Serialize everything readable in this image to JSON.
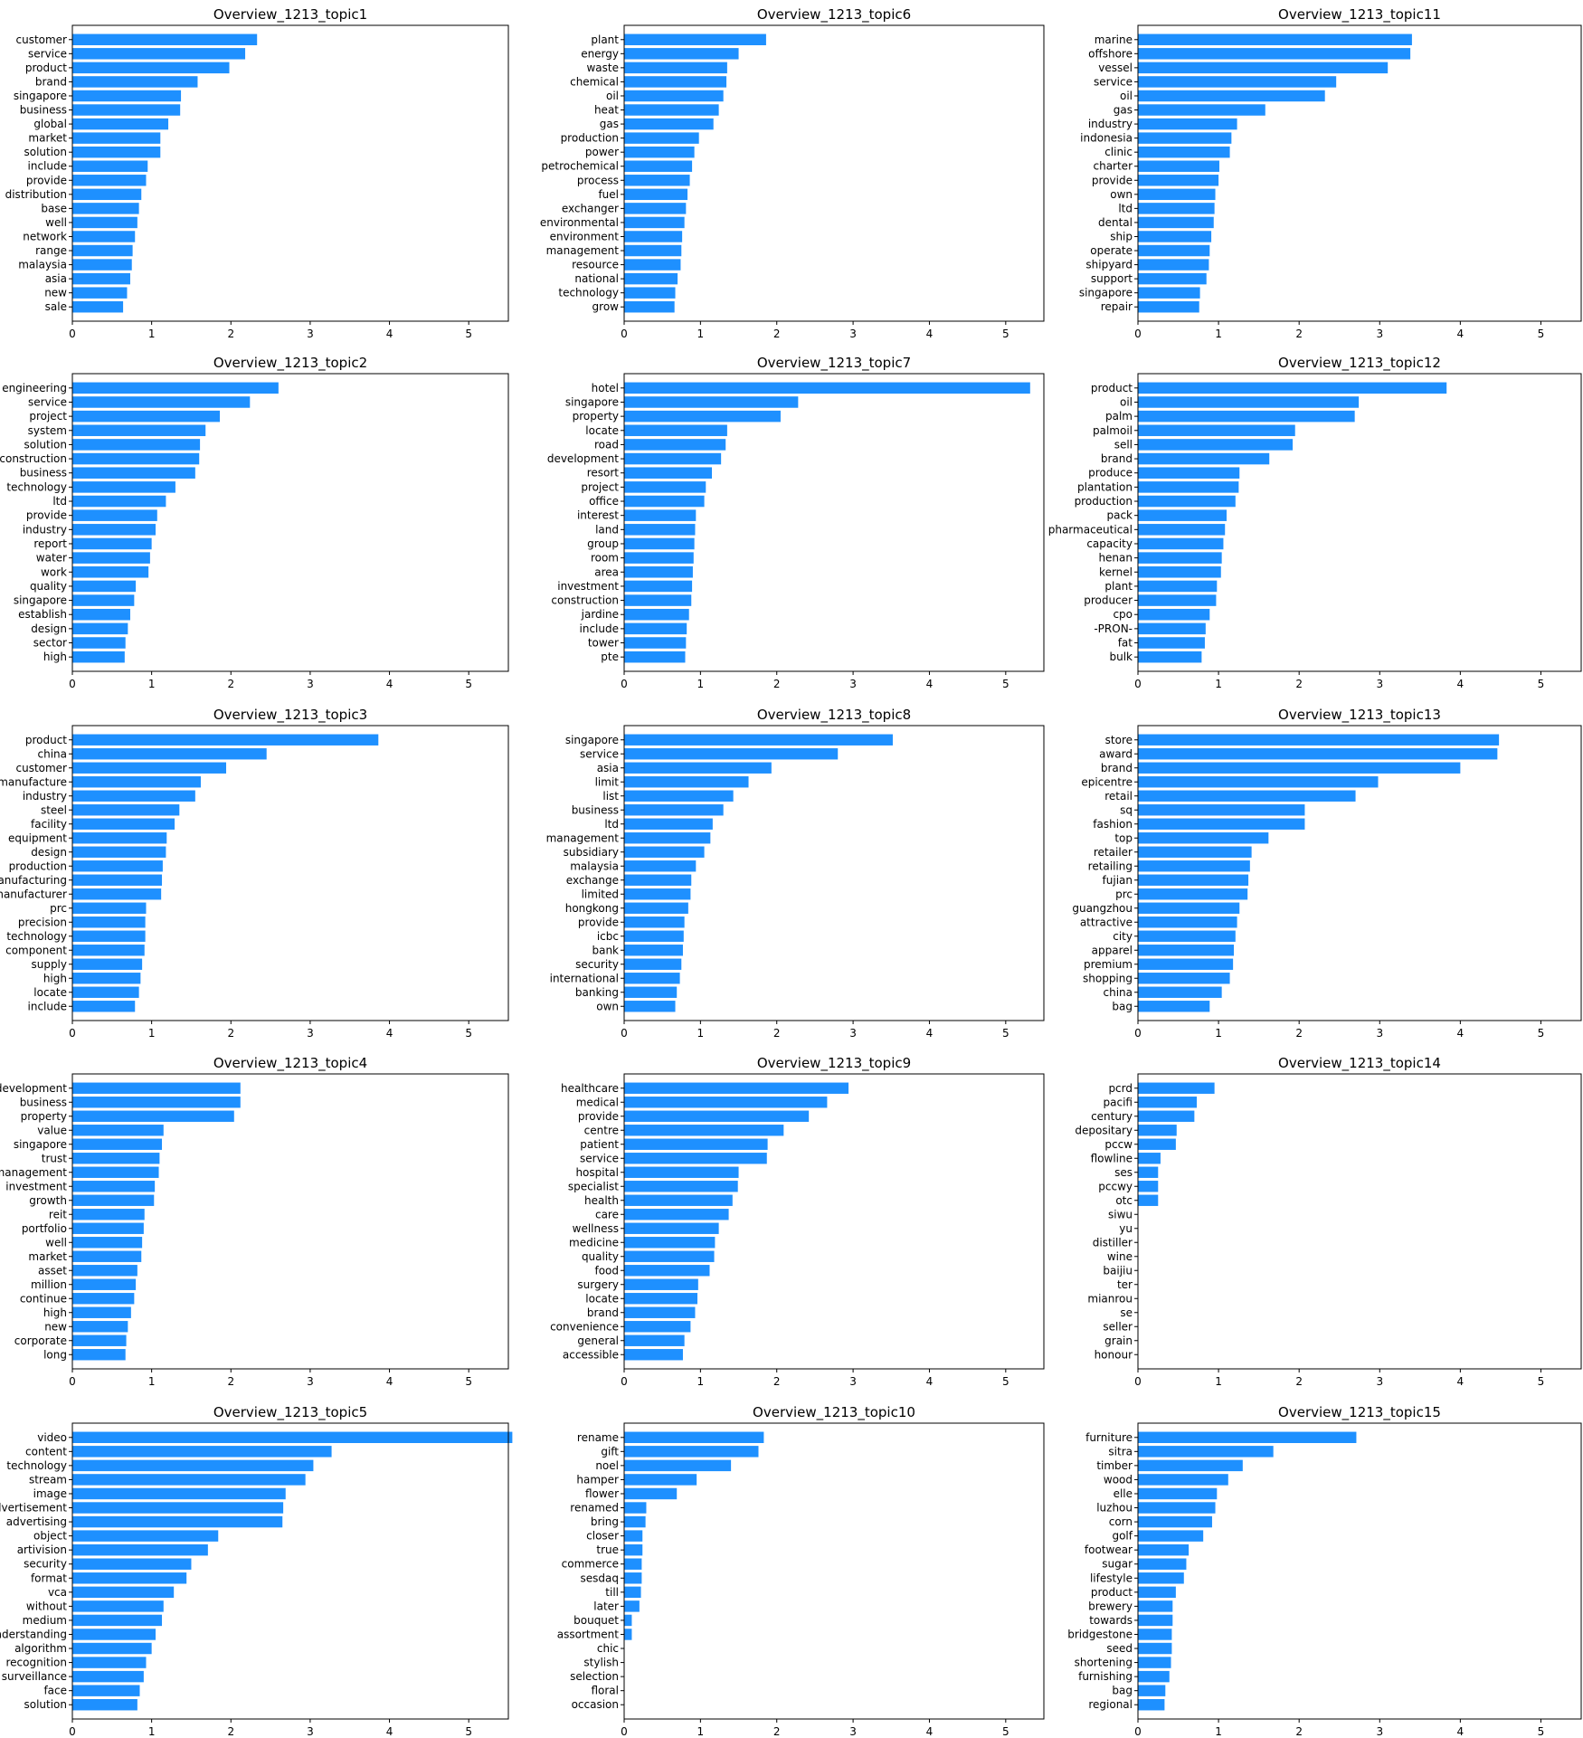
{
  "chart_data": [
    {
      "type": "bar",
      "orientation": "horizontal",
      "title": "Overview_1213_topic1",
      "xlim": [
        0,
        5.5
      ],
      "xticks": [
        0,
        1,
        2,
        3,
        4,
        5
      ],
      "bar_color": "#1E90FF",
      "categories": [
        "customer",
        "service",
        "product",
        "brand",
        "singapore",
        "business",
        "global",
        "market",
        "solution",
        "include",
        "provide",
        "distribution",
        "base",
        "well",
        "network",
        "range",
        "malaysia",
        "asia",
        "new",
        "sale"
      ],
      "values": [
        2.33,
        2.18,
        1.98,
        1.58,
        1.37,
        1.36,
        1.21,
        1.11,
        1.11,
        0.95,
        0.93,
        0.87,
        0.84,
        0.82,
        0.79,
        0.76,
        0.75,
        0.73,
        0.69,
        0.64
      ]
    },
    {
      "type": "bar",
      "orientation": "horizontal",
      "title": "Overview_1213_topic6",
      "xlim": [
        0,
        5.5
      ],
      "xticks": [
        0,
        1,
        2,
        3,
        4,
        5
      ],
      "bar_color": "#1E90FF",
      "categories": [
        "plant",
        "energy",
        "waste",
        "chemical",
        "oil",
        "heat",
        "gas",
        "production",
        "power",
        "petrochemical",
        "process",
        "fuel",
        "exchanger",
        "environmental",
        "environment",
        "management",
        "resource",
        "national",
        "technology",
        "grow"
      ],
      "values": [
        1.86,
        1.5,
        1.35,
        1.34,
        1.3,
        1.24,
        1.17,
        0.98,
        0.92,
        0.89,
        0.86,
        0.83,
        0.81,
        0.79,
        0.76,
        0.75,
        0.74,
        0.7,
        0.67,
        0.66
      ]
    },
    {
      "type": "bar",
      "orientation": "horizontal",
      "title": "Overview_1213_topic11",
      "xlim": [
        0,
        5.5
      ],
      "xticks": [
        0,
        1,
        2,
        3,
        4,
        5
      ],
      "bar_color": "#1E90FF",
      "categories": [
        "marine",
        "offshore",
        "vessel",
        "service",
        "oil",
        "gas",
        "industry",
        "indonesia",
        "clinic",
        "charter",
        "provide",
        "own",
        "ltd",
        "dental",
        "ship",
        "operate",
        "shipyard",
        "support",
        "singapore",
        "repair"
      ],
      "values": [
        3.4,
        3.38,
        3.1,
        2.46,
        2.32,
        1.58,
        1.23,
        1.16,
        1.14,
        1.01,
        1.0,
        0.96,
        0.95,
        0.94,
        0.91,
        0.89,
        0.88,
        0.85,
        0.77,
        0.76
      ]
    },
    {
      "type": "bar",
      "orientation": "horizontal",
      "title": "Overview_1213_topic2",
      "xlim": [
        0,
        5.5
      ],
      "xticks": [
        0,
        1,
        2,
        3,
        4,
        5
      ],
      "bar_color": "#1E90FF",
      "categories": [
        "engineering",
        "service",
        "project",
        "system",
        "solution",
        "construction",
        "business",
        "technology",
        "ltd",
        "provide",
        "industry",
        "report",
        "water",
        "work",
        "quality",
        "singapore",
        "establish",
        "design",
        "sector",
        "high"
      ],
      "values": [
        2.6,
        2.24,
        1.86,
        1.68,
        1.61,
        1.6,
        1.55,
        1.3,
        1.18,
        1.07,
        1.05,
        1.0,
        0.98,
        0.96,
        0.8,
        0.78,
        0.73,
        0.7,
        0.67,
        0.66
      ]
    },
    {
      "type": "bar",
      "orientation": "horizontal",
      "title": "Overview_1213_topic7",
      "xlim": [
        0,
        5.5
      ],
      "xticks": [
        0,
        1,
        2,
        3,
        4,
        5
      ],
      "bar_color": "#1E90FF",
      "categories": [
        "hotel",
        "singapore",
        "property",
        "locate",
        "road",
        "development",
        "resort",
        "project",
        "office",
        "interest",
        "land",
        "group",
        "room",
        "area",
        "investment",
        "construction",
        "jardine",
        "include",
        "tower",
        "pte"
      ],
      "values": [
        5.32,
        2.28,
        2.05,
        1.35,
        1.33,
        1.27,
        1.15,
        1.07,
        1.05,
        0.94,
        0.93,
        0.92,
        0.91,
        0.9,
        0.89,
        0.88,
        0.85,
        0.82,
        0.81,
        0.8
      ]
    },
    {
      "type": "bar",
      "orientation": "horizontal",
      "title": "Overview_1213_topic12",
      "xlim": [
        0,
        5.5
      ],
      "xticks": [
        0,
        1,
        2,
        3,
        4,
        5
      ],
      "bar_color": "#1E90FF",
      "categories": [
        "product",
        "oil",
        "palm",
        "palmoil",
        "sell",
        "brand",
        "produce",
        "plantation",
        "production",
        "pack",
        "pharmaceutical",
        "capacity",
        "henan",
        "kernel",
        "plant",
        "producer",
        "cpo",
        "-PRON-",
        "fat",
        "bulk"
      ],
      "values": [
        3.83,
        2.74,
        2.69,
        1.95,
        1.92,
        1.63,
        1.26,
        1.25,
        1.21,
        1.1,
        1.08,
        1.06,
        1.04,
        1.03,
        0.98,
        0.97,
        0.89,
        0.84,
        0.83,
        0.79
      ]
    },
    {
      "type": "bar",
      "orientation": "horizontal",
      "title": "Overview_1213_topic3",
      "xlim": [
        0,
        5.5
      ],
      "xticks": [
        0,
        1,
        2,
        3,
        4,
        5
      ],
      "bar_color": "#1E90FF",
      "categories": [
        "product",
        "china",
        "customer",
        "manufacture",
        "industry",
        "steel",
        "facility",
        "equipment",
        "design",
        "production",
        "manufacturing",
        "manufacturer",
        "prc",
        "precision",
        "technology",
        "component",
        "supply",
        "high",
        "locate",
        "include"
      ],
      "values": [
        3.86,
        2.45,
        1.94,
        1.62,
        1.55,
        1.35,
        1.29,
        1.19,
        1.18,
        1.14,
        1.13,
        1.12,
        0.93,
        0.92,
        0.92,
        0.91,
        0.88,
        0.86,
        0.84,
        0.79
      ]
    },
    {
      "type": "bar",
      "orientation": "horizontal",
      "title": "Overview_1213_topic8",
      "xlim": [
        0,
        5.5
      ],
      "xticks": [
        0,
        1,
        2,
        3,
        4,
        5
      ],
      "bar_color": "#1E90FF",
      "categories": [
        "singapore",
        "service",
        "asia",
        "limit",
        "list",
        "business",
        "ltd",
        "management",
        "subsidiary",
        "malaysia",
        "exchange",
        "limited",
        "hongkong",
        "provide",
        "icbc",
        "bank",
        "security",
        "international",
        "banking",
        "own"
      ],
      "values": [
        3.52,
        2.8,
        1.93,
        1.63,
        1.43,
        1.3,
        1.16,
        1.13,
        1.05,
        0.94,
        0.88,
        0.87,
        0.84,
        0.79,
        0.78,
        0.77,
        0.75,
        0.73,
        0.69,
        0.67
      ]
    },
    {
      "type": "bar",
      "orientation": "horizontal",
      "title": "Overview_1213_topic13",
      "xlim": [
        0,
        5.5
      ],
      "xticks": [
        0,
        1,
        2,
        3,
        4,
        5
      ],
      "bar_color": "#1E90FF",
      "categories": [
        "store",
        "award",
        "brand",
        "epicentre",
        "retail",
        "sq",
        "fashion",
        "top",
        "retailer",
        "retailing",
        "fujian",
        "prc",
        "guangzhou",
        "attractive",
        "city",
        "apparel",
        "premium",
        "shopping",
        "china",
        "bag"
      ],
      "values": [
        4.48,
        4.46,
        4.0,
        2.98,
        2.7,
        2.07,
        2.07,
        1.62,
        1.41,
        1.39,
        1.37,
        1.36,
        1.26,
        1.23,
        1.21,
        1.19,
        1.18,
        1.14,
        1.04,
        0.89
      ]
    },
    {
      "type": "bar",
      "orientation": "horizontal",
      "title": "Overview_1213_topic4",
      "xlim": [
        0,
        5.5
      ],
      "xticks": [
        0,
        1,
        2,
        3,
        4,
        5
      ],
      "bar_color": "#1E90FF",
      "categories": [
        "development",
        "business",
        "property",
        "value",
        "singapore",
        "trust",
        "management",
        "investment",
        "growth",
        "reit",
        "portfolio",
        "well",
        "market",
        "asset",
        "million",
        "continue",
        "high",
        "new",
        "corporate",
        "long"
      ],
      "values": [
        2.12,
        2.12,
        2.04,
        1.15,
        1.13,
        1.1,
        1.09,
        1.04,
        1.03,
        0.91,
        0.9,
        0.88,
        0.87,
        0.82,
        0.8,
        0.78,
        0.74,
        0.7,
        0.68,
        0.67
      ]
    },
    {
      "type": "bar",
      "orientation": "horizontal",
      "title": "Overview_1213_topic9",
      "xlim": [
        0,
        5.5
      ],
      "xticks": [
        0,
        1,
        2,
        3,
        4,
        5
      ],
      "bar_color": "#1E90FF",
      "categories": [
        "healthcare",
        "medical",
        "provide",
        "centre",
        "patient",
        "service",
        "hospital",
        "specialist",
        "health",
        "care",
        "wellness",
        "medicine",
        "quality",
        "food",
        "surgery",
        "locate",
        "brand",
        "convenience",
        "general",
        "accessible"
      ],
      "values": [
        2.94,
        2.66,
        2.42,
        2.09,
        1.88,
        1.87,
        1.5,
        1.49,
        1.42,
        1.37,
        1.24,
        1.19,
        1.18,
        1.12,
        0.97,
        0.96,
        0.93,
        0.87,
        0.79,
        0.77
      ]
    },
    {
      "type": "bar",
      "orientation": "horizontal",
      "title": "Overview_1213_topic14",
      "xlim": [
        0,
        5.5
      ],
      "xticks": [
        0,
        1,
        2,
        3,
        4,
        5
      ],
      "bar_color": "#1E90FF",
      "categories": [
        "pcrd",
        "pacifi",
        "century",
        "depositary",
        "pccw",
        "flowline",
        "ses",
        "pccwy",
        "otc",
        "siwu",
        "yu",
        "distiller",
        "wine",
        "baijiu",
        "ter",
        "mianrou",
        "se",
        "seller",
        "grain",
        "honour"
      ],
      "values": [
        0.95,
        0.73,
        0.7,
        0.48,
        0.47,
        0.28,
        0.25,
        0.25,
        0.25,
        0,
        0,
        0,
        0,
        0,
        0,
        0,
        0,
        0,
        0,
        0
      ]
    },
    {
      "type": "bar",
      "orientation": "horizontal",
      "title": "Overview_1213_topic5",
      "xlim": [
        0,
        5.5
      ],
      "xticks": [
        0,
        1,
        2,
        3,
        4,
        5
      ],
      "bar_color": "#1E90FF",
      "categories": [
        "video",
        "content",
        "technology",
        "stream",
        "image",
        "advertisement",
        "advertising",
        "object",
        "artivision",
        "security",
        "format",
        "vca",
        "without",
        "medium",
        "understanding",
        "algorithm",
        "recognition",
        "surveillance",
        "face",
        "solution"
      ],
      "values": [
        5.55,
        3.27,
        3.04,
        2.94,
        2.69,
        2.66,
        2.65,
        1.84,
        1.71,
        1.5,
        1.44,
        1.28,
        1.15,
        1.13,
        1.05,
        1.0,
        0.93,
        0.9,
        0.85,
        0.82
      ]
    },
    {
      "type": "bar",
      "orientation": "horizontal",
      "title": "Overview_1213_topic10",
      "xlim": [
        0,
        5.5
      ],
      "xticks": [
        0,
        1,
        2,
        3,
        4,
        5
      ],
      "bar_color": "#1E90FF",
      "categories": [
        "rename",
        "gift",
        "noel",
        "hamper",
        "flower",
        "renamed",
        "bring",
        "closer",
        "true",
        "commerce",
        "sesdaq",
        "till",
        "later",
        "bouquet",
        "assortment",
        "chic",
        "stylish",
        "selection",
        "floral",
        "occasion"
      ],
      "values": [
        1.83,
        1.76,
        1.4,
        0.95,
        0.69,
        0.29,
        0.28,
        0.24,
        0.24,
        0.23,
        0.23,
        0.22,
        0.2,
        0.1,
        0.1,
        0,
        0,
        0,
        0,
        0
      ]
    },
    {
      "type": "bar",
      "orientation": "horizontal",
      "title": "Overview_1213_topic15",
      "xlim": [
        0,
        5.5
      ],
      "xticks": [
        0,
        1,
        2,
        3,
        4,
        5
      ],
      "bar_color": "#1E90FF",
      "categories": [
        "furniture",
        "sitra",
        "timber",
        "wood",
        "elle",
        "luzhou",
        "corn",
        "golf",
        "footwear",
        "sugar",
        "lifestyle",
        "product",
        "brewery",
        "towards",
        "bridgestone",
        "seed",
        "shortening",
        "furnishing",
        "bag",
        "regional"
      ],
      "values": [
        2.71,
        1.68,
        1.3,
        1.12,
        0.98,
        0.96,
        0.92,
        0.81,
        0.63,
        0.6,
        0.57,
        0.47,
        0.43,
        0.43,
        0.42,
        0.42,
        0.41,
        0.39,
        0.34,
        0.33
      ]
    }
  ]
}
